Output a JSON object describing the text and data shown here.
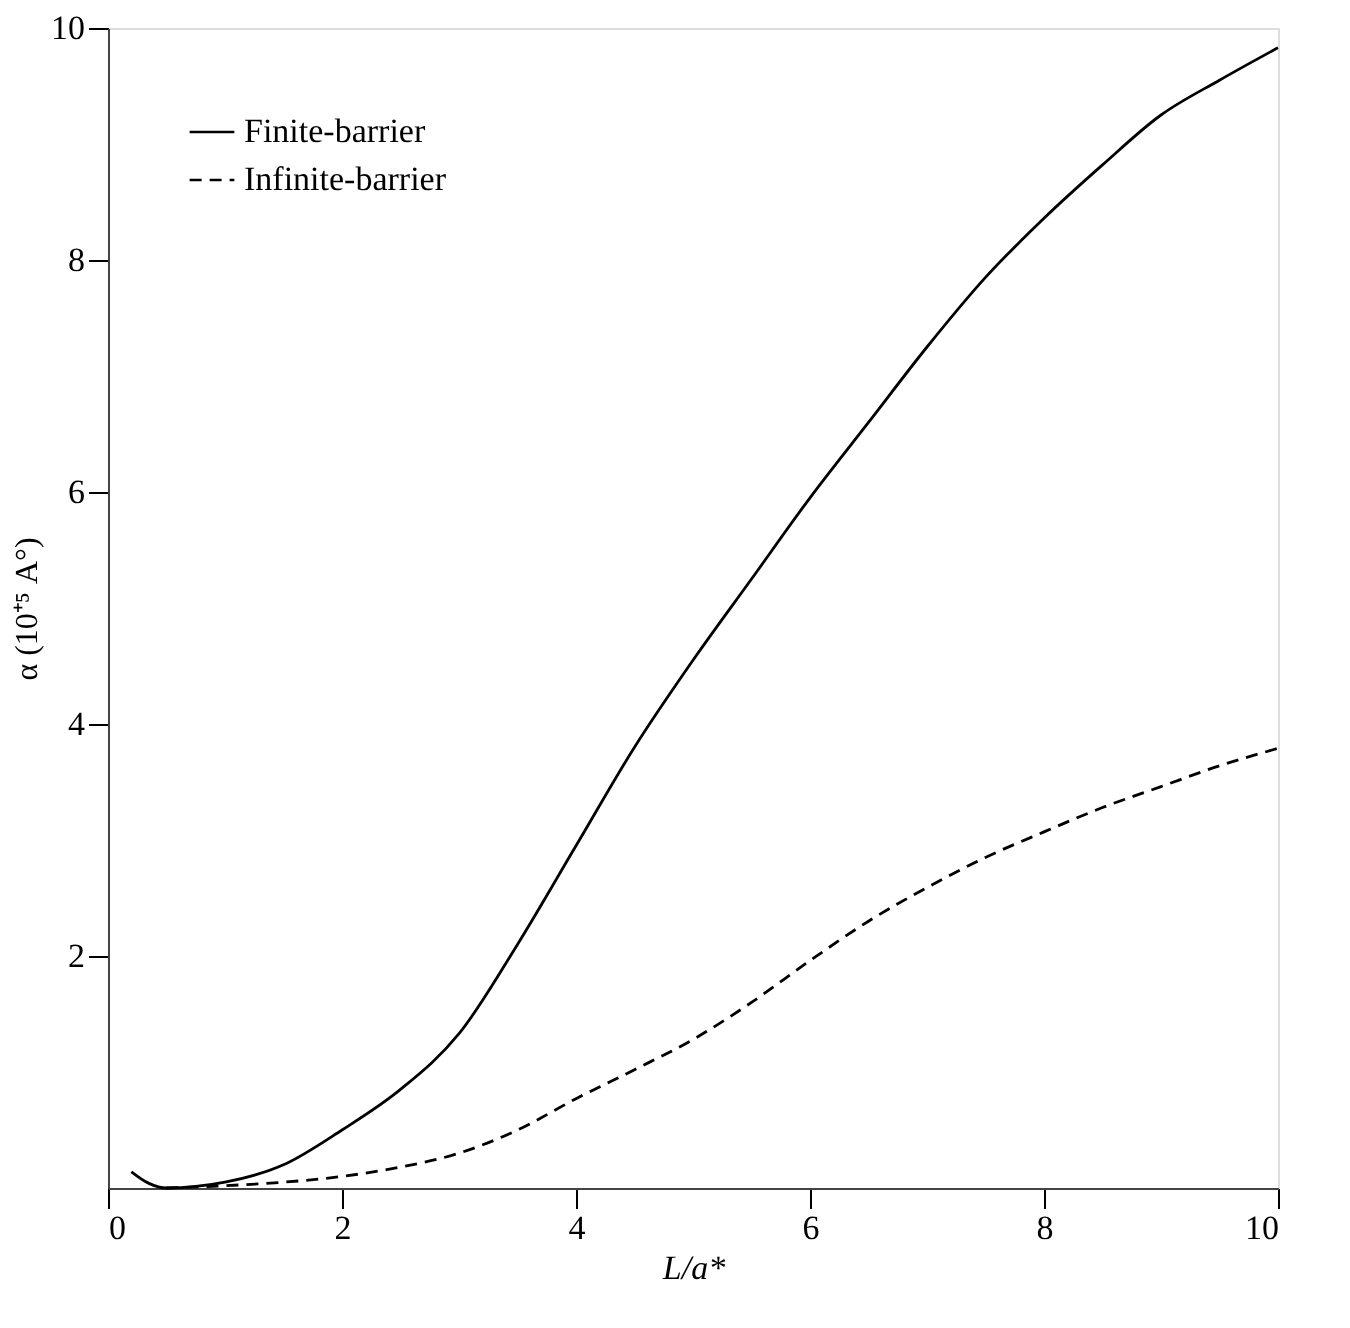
{
  "chart_data": {
    "type": "line",
    "xlabel": "L/a*",
    "ylabel": "α (10⁺⁵ A°)",
    "xlim": [
      0,
      10
    ],
    "ylim": [
      0,
      10
    ],
    "xticks": [
      0,
      2,
      4,
      6,
      8,
      10
    ],
    "yticks": [
      2,
      4,
      6,
      8,
      10
    ],
    "grid": false,
    "legend": "top left",
    "marker": "none",
    "series": [
      {
        "name": "Finite-barrier",
        "color": "#000000",
        "line_style": "solid",
        "x": [
          0.2,
          0.35,
          0.5,
          1.0,
          1.5,
          2.0,
          2.5,
          3.0,
          3.5,
          4.0,
          4.5,
          5.0,
          5.5,
          6.0,
          6.5,
          7.0,
          7.5,
          8.0,
          8.5,
          9.0,
          9.5,
          10.0
        ],
        "values": [
          0.14,
          0.04,
          0.0,
          0.05,
          0.2,
          0.5,
          0.85,
          1.33,
          2.1,
          2.95,
          3.8,
          4.55,
          5.25,
          5.95,
          6.6,
          7.25,
          7.85,
          8.36,
          8.82,
          9.25,
          9.55,
          9.83
        ]
      },
      {
        "name": "Infinite-barrier",
        "color": "#000000",
        "line_style": "dashed",
        "x": [
          0.5,
          1.0,
          1.5,
          2.0,
          2.5,
          3.0,
          3.5,
          4.0,
          4.5,
          5.0,
          5.5,
          6.0,
          6.5,
          7.0,
          7.5,
          8.0,
          8.5,
          9.0,
          9.5,
          10.0
        ],
        "values": [
          0.0,
          0.02,
          0.05,
          0.1,
          0.18,
          0.3,
          0.5,
          0.77,
          1.02,
          1.28,
          1.6,
          1.96,
          2.3,
          2.59,
          2.85,
          3.07,
          3.28,
          3.46,
          3.64,
          3.79
        ]
      }
    ]
  }
}
